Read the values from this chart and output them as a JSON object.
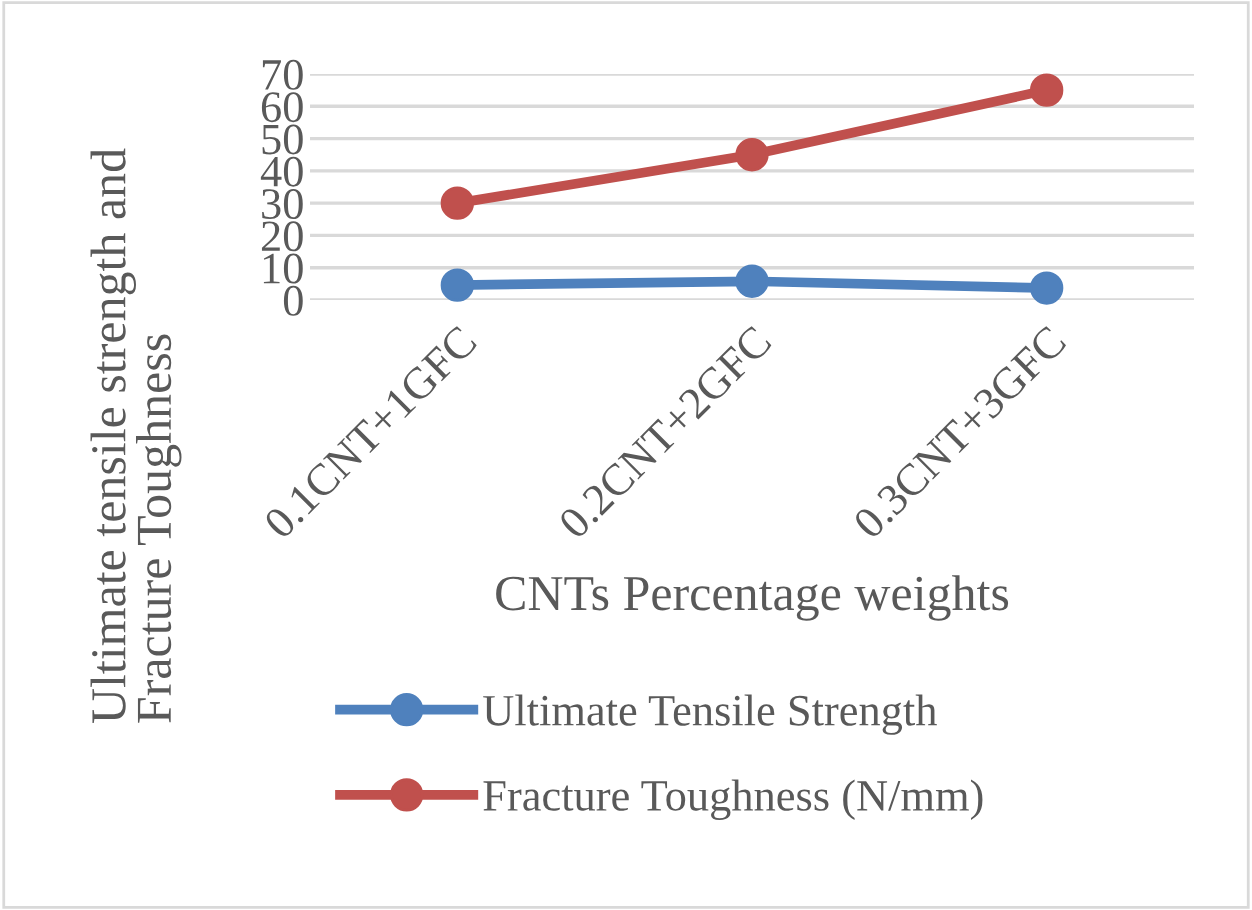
{
  "chart_data": {
    "type": "line",
    "xlabel": "CNTs Percentage weights",
    "ylabel": "Ultimate tensile strength and\nFracture Toughness",
    "categories": [
      "0.1CNT+1GFC",
      "0.2CNT+2GFC",
      "0.3CNT+3GFC"
    ],
    "series": [
      {
        "name": "Ultimate Tensile Strength",
        "color": "#4f81bd",
        "values": [
          4.6,
          5.8,
          3.7
        ]
      },
      {
        "name": "Fracture Toughness (N/mm)",
        "color": "#c0504d",
        "values": [
          30,
          45,
          65
        ]
      }
    ],
    "ylim": [
      0,
      70
    ],
    "yticks": [
      0,
      10,
      20,
      30,
      40,
      50,
      60,
      70
    ],
    "grid": "y",
    "legend": "bottom",
    "marker": "circle",
    "line_style": "solid"
  }
}
